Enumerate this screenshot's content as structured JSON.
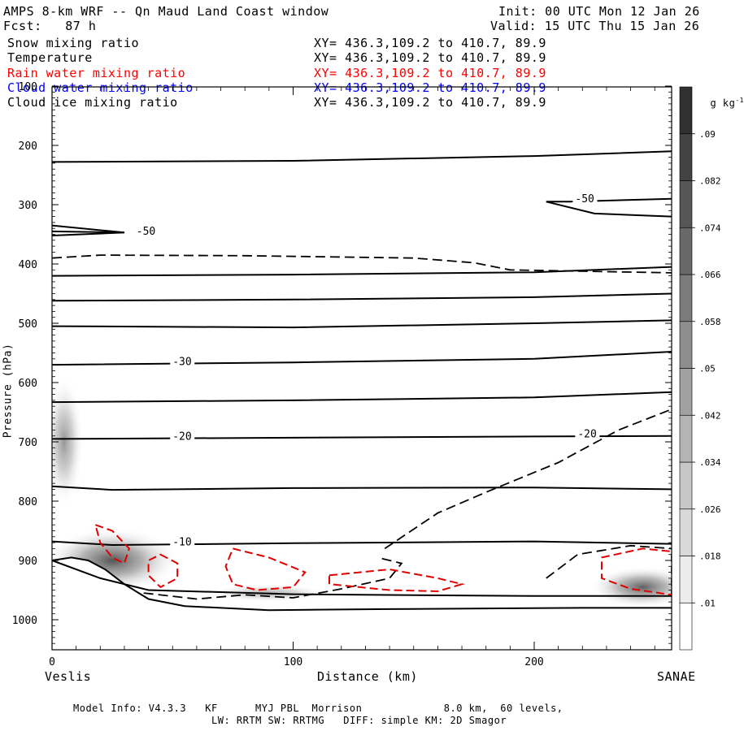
{
  "header": {
    "title": "AMPS 8-km WRF -- Qn Maud Land Coast window",
    "forecast": "Fcst:   87 h",
    "init": "Init: 00 UTC Mon 12 Jan 26",
    "valid": "Valid: 15 UTC Thu 15 Jan 26"
  },
  "fields": [
    {
      "name": "Snow mixing ratio",
      "xy": "XY= 436.3,109.2 to 410.7, 89.9",
      "color": "#000000"
    },
    {
      "name": "Temperature",
      "xy": "XY= 436.3,109.2 to 410.7, 89.9",
      "color": "#000000"
    },
    {
      "name": "Rain water mixing ratio",
      "xy": "XY= 436.3,109.2 to 410.7, 89.9",
      "color": "#ff0000"
    },
    {
      "name": "Cloud water mixing ratio",
      "xy": "XY= 436.3,109.2 to 410.7, 89.9",
      "color": "#0000ff"
    },
    {
      "name": "Cloud ice mixing ratio",
      "xy": "XY= 436.3,109.2 to 410.7, 89.9",
      "color": "#000000"
    }
  ],
  "chart_data": {
    "type": "cross-section",
    "ylabel": "Pressure (hPa)",
    "xlabel": "Distance (km)",
    "xlim": [
      0,
      257
    ],
    "ylim": [
      1050,
      100
    ],
    "x_ticks": [
      0,
      100,
      200
    ],
    "x_tick_labels": [
      "0",
      "100",
      "200"
    ],
    "y_ticks": [
      100,
      200,
      300,
      400,
      500,
      600,
      700,
      800,
      900,
      1000
    ],
    "y_tick_labels": [
      "100",
      "200",
      "300",
      "400",
      "500",
      "600",
      "700",
      "800",
      "900",
      "1000"
    ],
    "left_endpoint": "Veslis",
    "right_endpoint": "SANAE",
    "terrain": [
      [
        0,
        900
      ],
      [
        8,
        895
      ],
      [
        15,
        900
      ],
      [
        22,
        915
      ],
      [
        30,
        940
      ],
      [
        40,
        965
      ],
      [
        55,
        977
      ],
      [
        70,
        980
      ],
      [
        90,
        984
      ],
      [
        110,
        983
      ],
      [
        140,
        982
      ],
      [
        180,
        981
      ],
      [
        220,
        980
      ],
      [
        257,
        980
      ]
    ],
    "isotherms": [
      {
        "label": "-50",
        "points": [
          [
            0,
            345
          ],
          [
            30,
            347
          ]
        ],
        "label_at": [
          35,
          348
        ]
      },
      {
        "label": "-50",
        "points": [
          [
            0,
            335
          ],
          [
            30,
            347
          ],
          [
            0,
            352
          ]
        ]
      },
      {
        "label": "-50",
        "points": [
          [
            205,
            295
          ],
          [
            215,
            295
          ],
          [
            257,
            290
          ]
        ],
        "label_at": [
          217,
          293
        ]
      },
      {
        "label": "-50",
        "points": [
          [
            205,
            295
          ],
          [
            225,
            315
          ],
          [
            257,
            320
          ]
        ]
      },
      {
        "label": "",
        "points": [
          [
            0,
            228
          ],
          [
            100,
            226
          ],
          [
            200,
            218
          ],
          [
            257,
            210
          ]
        ]
      },
      {
        "label": "",
        "points": [
          [
            0,
            420
          ],
          [
            100,
            418
          ],
          [
            200,
            414
          ],
          [
            257,
            405
          ]
        ]
      },
      {
        "label": "",
        "points": [
          [
            0,
            462
          ],
          [
            100,
            460
          ],
          [
            200,
            456
          ],
          [
            257,
            450
          ]
        ]
      },
      {
        "label": "",
        "points": [
          [
            0,
            505
          ],
          [
            100,
            507
          ],
          [
            200,
            500
          ],
          [
            257,
            495
          ]
        ]
      },
      {
        "label": "-30",
        "points": [
          [
            0,
            570
          ],
          [
            100,
            566
          ],
          [
            200,
            560
          ],
          [
            257,
            548
          ]
        ],
        "label_at": [
          50,
          568
        ]
      },
      {
        "label": "",
        "points": [
          [
            0,
            633
          ],
          [
            100,
            630
          ],
          [
            200,
            625
          ],
          [
            257,
            616
          ]
        ]
      },
      {
        "label": "-20",
        "points": [
          [
            0,
            695
          ],
          [
            100,
            693
          ],
          [
            200,
            691
          ],
          [
            257,
            690
          ]
        ],
        "label_at": [
          50,
          694
        ]
      },
      {
        "label": "",
        "points": [
          [
            0,
            775
          ],
          [
            25,
            781
          ],
          [
            100,
            778
          ],
          [
            200,
            777
          ],
          [
            257,
            780
          ]
        ]
      },
      {
        "label": "-10",
        "points": [
          [
            0,
            868
          ],
          [
            25,
            874
          ],
          [
            100,
            871
          ],
          [
            200,
            868
          ],
          [
            257,
            872
          ]
        ],
        "label_at": [
          50,
          872
        ]
      },
      {
        "label": "",
        "points": [
          [
            0,
            900
          ],
          [
            20,
            930
          ],
          [
            40,
            950
          ],
          [
            100,
            957
          ],
          [
            200,
            960
          ],
          [
            257,
            960
          ]
        ]
      }
    ],
    "dashed_lines": [
      {
        "label": "",
        "points": [
          [
            0,
            390
          ],
          [
            20,
            385
          ],
          [
            80,
            386
          ],
          [
            150,
            390
          ],
          [
            175,
            398
          ],
          [
            190,
            410
          ],
          [
            257,
            415
          ]
        ]
      },
      {
        "label": "-20",
        "points": [
          [
            138,
            880
          ],
          [
            160,
            820
          ],
          [
            180,
            785
          ],
          [
            210,
            735
          ],
          [
            235,
            680
          ],
          [
            257,
            645
          ]
        ],
        "label_at": [
          218,
          690
        ]
      },
      {
        "label": "-10",
        "points": [
          [
            205,
            930
          ],
          [
            218,
            890
          ],
          [
            240,
            875
          ],
          [
            257,
            880
          ]
        ]
      },
      {
        "label": "",
        "points": [
          [
            38,
            955
          ],
          [
            60,
            965
          ],
          [
            80,
            958
          ],
          [
            100,
            963
          ],
          [
            120,
            948
          ],
          [
            140,
            930
          ],
          [
            145,
            905
          ],
          [
            135,
            895
          ]
        ]
      }
    ],
    "rain_contours": [
      {
        "points": [
          [
            18,
            840
          ],
          [
            25,
            850
          ],
          [
            32,
            880
          ],
          [
            30,
            905
          ],
          [
            25,
            895
          ],
          [
            20,
            870
          ],
          [
            18,
            840
          ]
        ]
      },
      {
        "points": [
          [
            45,
            890
          ],
          [
            52,
            905
          ],
          [
            52,
            930
          ],
          [
            45,
            945
          ],
          [
            40,
            925
          ],
          [
            40,
            900
          ],
          [
            45,
            890
          ]
        ]
      },
      {
        "points": [
          [
            75,
            880
          ],
          [
            90,
            895
          ],
          [
            105,
            920
          ],
          [
            100,
            945
          ],
          [
            85,
            950
          ],
          [
            75,
            940
          ],
          [
            72,
            910
          ],
          [
            75,
            880
          ]
        ]
      },
      {
        "points": [
          [
            115,
            925
          ],
          [
            140,
            915
          ],
          [
            160,
            930
          ],
          [
            170,
            940
          ],
          [
            160,
            952
          ],
          [
            140,
            950
          ],
          [
            115,
            940
          ],
          [
            115,
            925
          ]
        ]
      },
      {
        "points": [
          [
            228,
            895
          ],
          [
            245,
            880
          ],
          [
            257,
            885
          ],
          [
            257,
            958
          ],
          [
            240,
            948
          ],
          [
            228,
            930
          ],
          [
            228,
            895
          ]
        ]
      }
    ],
    "shaded_regions": [
      {
        "center": [
          5,
          700
        ],
        "rx": 8,
        "ry": 110,
        "value": 0.03
      },
      {
        "center": [
          25,
          900
        ],
        "rx": 28,
        "ry": 55,
        "value": 0.06
      },
      {
        "center": [
          245,
          945
        ],
        "rx": 22,
        "ry": 35,
        "value": 0.055
      },
      {
        "center": [
          90,
          955
        ],
        "rx": 25,
        "ry": 15,
        "value": 0.02
      }
    ],
    "colorbar": {
      "unit_label": "g kg",
      "unit_exponent": "-1",
      "levels": [
        0.01,
        0.018,
        0.026,
        0.034,
        0.042,
        0.05,
        0.058,
        0.066,
        0.074,
        0.082,
        0.09
      ],
      "labels": [
        ".01",
        ".018",
        ".026",
        ".034",
        ".042",
        ".05",
        ".058",
        ".066",
        ".074",
        ".082",
        ".09"
      ]
    }
  },
  "footer": {
    "line1": "Model Info: V4.3.3   KF      MYJ PBL  Morrison             8.0 km,  60 levels,",
    "line2": "LW: RRTM SW: RRTMG   DIFF: simple KM: 2D Smagor"
  }
}
